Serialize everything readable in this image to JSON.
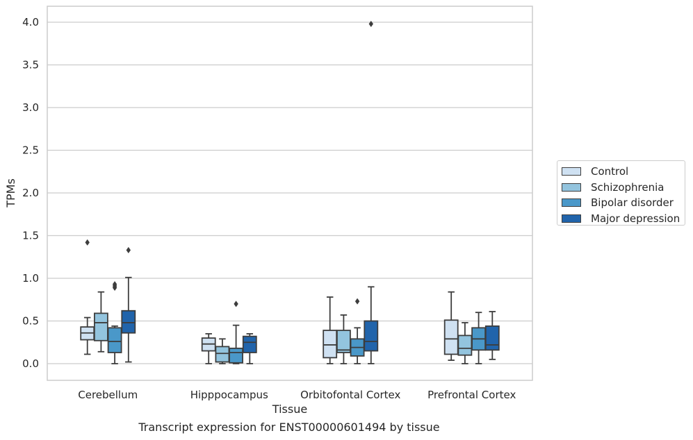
{
  "caption": "Transcript expression for ENST00000601494 by tissue",
  "colors": {
    "Control": "#cfe1f2",
    "Schizophrenia": "#93c4de",
    "Bipolar disorder": "#4a98c9",
    "Major depression": "#2164ab",
    "grid": "#cccccc",
    "line": "#3d3d3d"
  },
  "chart_data": {
    "type": "box",
    "xlabel": "Tissue",
    "ylabel": "TPMs",
    "ylim": [
      -0.2,
      4.2
    ],
    "yticks": [
      "0.0",
      "0.5",
      "1.0",
      "1.5",
      "2.0",
      "2.5",
      "3.0",
      "3.5",
      "4.0"
    ],
    "grid": true,
    "legend_position": "right",
    "categories": [
      "Cerebellum",
      "Hipppocampus",
      "Orbitofontal Cortex",
      "Prefrontal Cortex"
    ],
    "series": [
      {
        "name": "Control",
        "boxes": [
          {
            "whislo": 0.11,
            "q1": 0.28,
            "med": 0.36,
            "q3": 0.43,
            "whishi": 0.54,
            "fliers": [
              1.42
            ]
          },
          {
            "whislo": 0.0,
            "q1": 0.15,
            "med": 0.23,
            "q3": 0.3,
            "whishi": 0.35,
            "fliers": []
          },
          {
            "whislo": 0.0,
            "q1": 0.07,
            "med": 0.22,
            "q3": 0.39,
            "whishi": 0.78,
            "fliers": []
          },
          {
            "whislo": 0.04,
            "q1": 0.11,
            "med": 0.29,
            "q3": 0.51,
            "whishi": 0.84,
            "fliers": []
          }
        ]
      },
      {
        "name": "Schizophrenia",
        "boxes": [
          {
            "whislo": 0.14,
            "q1": 0.27,
            "med": 0.48,
            "q3": 0.59,
            "whishi": 0.84,
            "fliers": []
          },
          {
            "whislo": 0.0,
            "q1": 0.02,
            "med": 0.12,
            "q3": 0.2,
            "whishi": 0.29,
            "fliers": []
          },
          {
            "whislo": 0.0,
            "q1": 0.13,
            "med": 0.16,
            "q3": 0.39,
            "whishi": 0.57,
            "fliers": []
          },
          {
            "whislo": 0.0,
            "q1": 0.1,
            "med": 0.18,
            "q3": 0.33,
            "whishi": 0.48,
            "fliers": []
          }
        ]
      },
      {
        "name": "Bipolar disorder",
        "boxes": [
          {
            "whislo": 0.0,
            "q1": 0.13,
            "med": 0.26,
            "q3": 0.42,
            "whishi": 0.44,
            "fliers": [
              0.89,
              0.91,
              0.93
            ]
          },
          {
            "whislo": 0.0,
            "q1": 0.01,
            "med": 0.13,
            "q3": 0.18,
            "whishi": 0.45,
            "fliers": [
              0.7
            ]
          },
          {
            "whislo": 0.0,
            "q1": 0.09,
            "med": 0.19,
            "q3": 0.29,
            "whishi": 0.42,
            "fliers": [
              0.73
            ]
          },
          {
            "whislo": 0.0,
            "q1": 0.16,
            "med": 0.29,
            "q3": 0.42,
            "whishi": 0.6,
            "fliers": []
          }
        ]
      },
      {
        "name": "Major depression",
        "boxes": [
          {
            "whislo": 0.02,
            "q1": 0.36,
            "med": 0.48,
            "q3": 0.62,
            "whishi": 1.01,
            "fliers": [
              1.33
            ]
          },
          {
            "whislo": 0.0,
            "q1": 0.13,
            "med": 0.25,
            "q3": 0.32,
            "whishi": 0.35,
            "fliers": []
          },
          {
            "whislo": 0.0,
            "q1": 0.15,
            "med": 0.26,
            "q3": 0.5,
            "whishi": 0.9,
            "fliers": [
              3.98
            ]
          },
          {
            "whislo": 0.05,
            "q1": 0.16,
            "med": 0.22,
            "q3": 0.44,
            "whishi": 0.61,
            "fliers": []
          }
        ]
      }
    ]
  }
}
